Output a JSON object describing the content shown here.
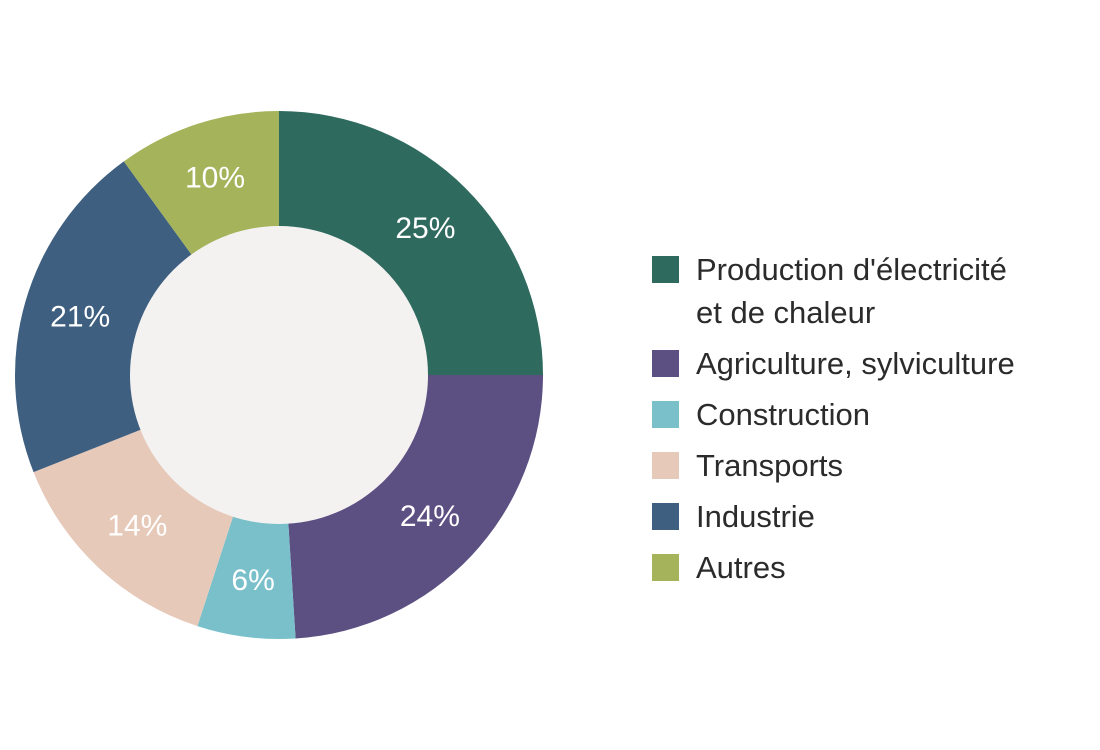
{
  "chart_data": {
    "type": "pie",
    "donut": true,
    "categories": [
      "Production d'électricité et de chaleur",
      "Agriculture, sylviculture",
      "Construction",
      "Transports",
      "Industrie",
      "Autres"
    ],
    "legend_lines": [
      [
        "Production d'électricité",
        "et de chaleur"
      ],
      [
        "Agriculture, sylviculture"
      ],
      [
        "Construction"
      ],
      [
        "Transports"
      ],
      [
        "Industrie"
      ],
      [
        "Autres"
      ]
    ],
    "values": [
      25,
      24,
      6,
      14,
      21,
      10
    ],
    "labels": [
      "25%",
      "24%",
      "6%",
      "14%",
      "21%",
      "10%"
    ],
    "colors": [
      "#2f6a5f",
      "#5c4f82",
      "#79c0cb",
      "#e7c9b9",
      "#3e5f80",
      "#a5b35a"
    ],
    "hole_color": "#f3f2f0",
    "title": "",
    "legend_position": "right"
  }
}
